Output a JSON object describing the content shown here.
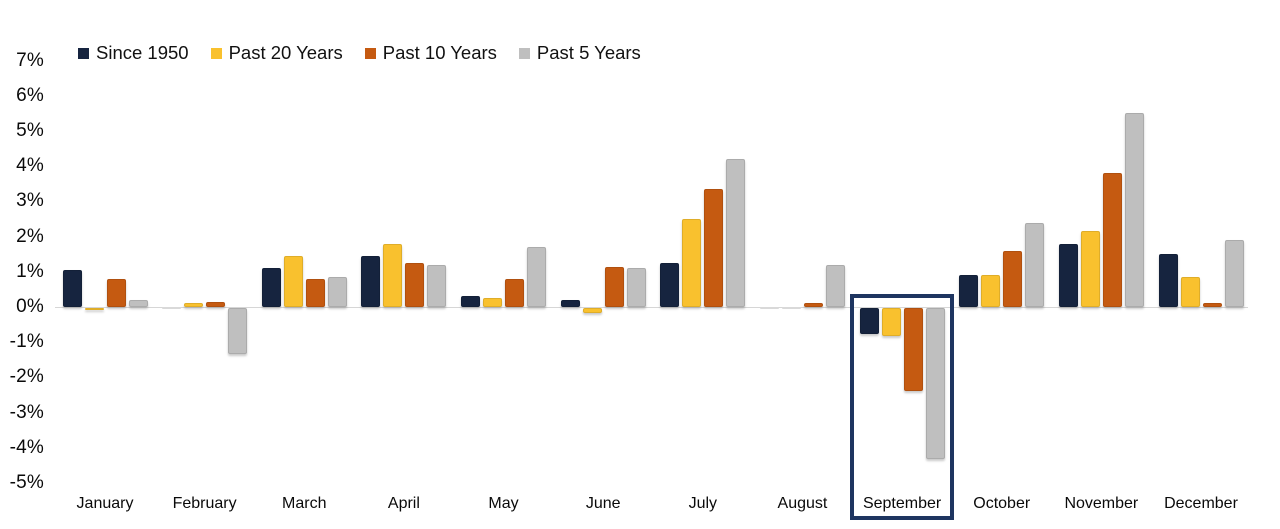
{
  "chart_data": {
    "type": "bar",
    "title": "",
    "categories": [
      "January",
      "February",
      "March",
      "April",
      "May",
      "June",
      "July",
      "August",
      "September",
      "October",
      "November",
      "December"
    ],
    "series": [
      {
        "name": "Since 1950",
        "color": "#16243f",
        "values": [
          1.05,
          0.0,
          1.1,
          1.45,
          0.3,
          0.2,
          1.25,
          0.0,
          -0.75,
          0.9,
          1.8,
          1.5
        ]
      },
      {
        "name": "Past 20 Years",
        "color": "#f9c12e",
        "values": [
          -0.05,
          0.1,
          1.45,
          1.8,
          0.25,
          -0.15,
          2.5,
          0.0,
          -0.8,
          0.9,
          2.15,
          0.85
        ]
      },
      {
        "name": "Past 10 Years",
        "color": "#c55a11",
        "values": [
          0.8,
          0.15,
          0.8,
          1.25,
          0.8,
          1.15,
          3.35,
          0.1,
          -2.35,
          1.6,
          3.8,
          0.1
        ]
      },
      {
        "name": "Past 5 Years",
        "color": "#bfbfbf",
        "values": [
          0.2,
          -1.3,
          0.85,
          1.2,
          1.7,
          1.1,
          4.2,
          1.2,
          -4.3,
          2.4,
          5.5,
          1.9
        ]
      }
    ],
    "ylabel": "",
    "xlabel": "",
    "ylim": [
      -5,
      7
    ],
    "ytick_step": 1,
    "ytick_labels": [
      "7%",
      "6%",
      "5%",
      "4%",
      "3%",
      "2%",
      "1%",
      "0%",
      "-1%",
      "-2%",
      "-3%",
      "-4%",
      "-5%"
    ],
    "grid": false,
    "legend_position": "top-left",
    "highlight": {
      "category": "September",
      "border_color": "#1e3560"
    },
    "axis_line_color": "#d6d6d6"
  }
}
